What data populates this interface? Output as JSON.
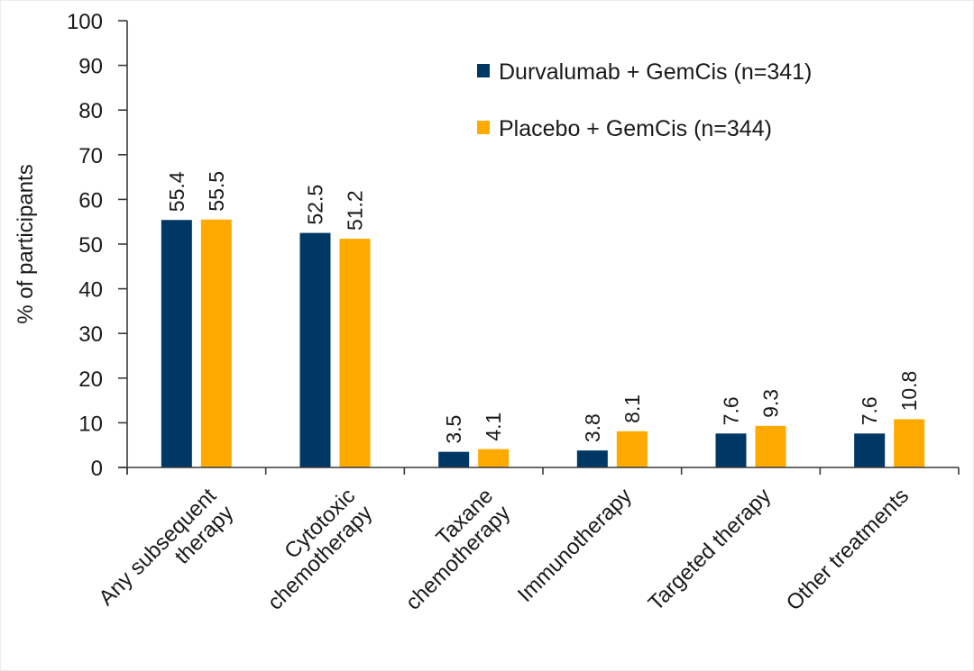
{
  "chart_data": {
    "type": "bar",
    "title": "",
    "xlabel": "",
    "ylabel": "% of participants",
    "ylim": [
      0,
      100
    ],
    "yticks": [
      0,
      10,
      20,
      30,
      40,
      50,
      60,
      70,
      80,
      90,
      100
    ],
    "grid": false,
    "legend_position": "top-right",
    "categories": [
      [
        "Any subsequent",
        "therapy"
      ],
      [
        "Cytotoxic",
        "chemotherapy"
      ],
      [
        "Taxane",
        "chemotherapy"
      ],
      [
        "Immunotherapy"
      ],
      [
        "Targeted therapy"
      ],
      [
        "Other treatments"
      ]
    ],
    "series": [
      {
        "name": "Durvalumab + GemCis (n=341)",
        "color": "#003865",
        "values": [
          55.4,
          52.5,
          3.5,
          3.8,
          7.6,
          7.6
        ],
        "labels": [
          "55.4",
          "52.5",
          "3.5",
          "3.8",
          "7.6",
          "7.6"
        ]
      },
      {
        "name": "Placebo + GemCis (n=344)",
        "color": "#FFAA00",
        "values": [
          55.5,
          51.2,
          4.1,
          8.1,
          9.3,
          10.8
        ],
        "labels": [
          "55.5",
          "51.2",
          "4.1",
          "8.1",
          "9.3",
          "10.8"
        ]
      }
    ]
  }
}
